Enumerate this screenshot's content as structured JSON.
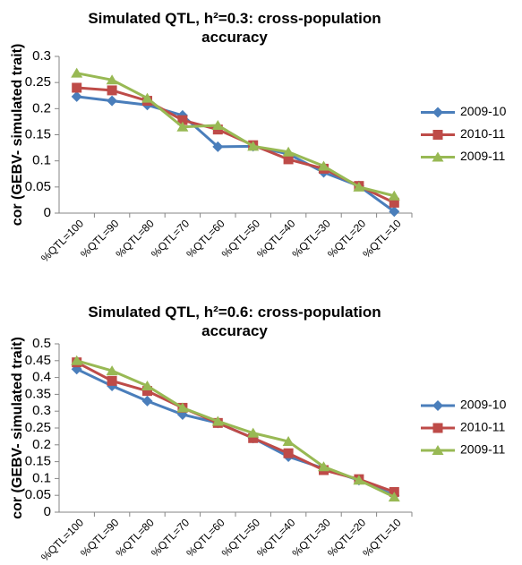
{
  "chart_data": [
    {
      "type": "line",
      "title": "Simulated QTL, h²=0.3: cross-population accuracy",
      "y_label": "cor (GEBV- simulated trait)",
      "categories": [
        "%QTL=100",
        "%QTL=90",
        "%QTL=80",
        "%QTL=70",
        "%QTL=60",
        "%QTL=50",
        "%QTL=40",
        "%QTL=30",
        "%QTL=20",
        "%QTL=10"
      ],
      "series": [
        {
          "name": "2009-10",
          "color": "#4a7ebb",
          "marker": "diamond",
          "values": [
            0.223,
            0.215,
            0.207,
            0.187,
            0.127,
            0.128,
            0.113,
            0.078,
            0.052,
            0.003
          ]
        },
        {
          "name": "2010-11",
          "color": "#be4b48",
          "marker": "square",
          "values": [
            0.24,
            0.235,
            0.215,
            0.178,
            0.16,
            0.13,
            0.103,
            0.085,
            0.052,
            0.02
          ]
        },
        {
          "name": "2009-11",
          "color": "#98b954",
          "marker": "triangle",
          "values": [
            0.268,
            0.255,
            0.22,
            0.165,
            0.168,
            0.128,
            0.117,
            0.09,
            0.05,
            0.033
          ]
        }
      ],
      "ylim": [
        0,
        0.3
      ],
      "yticks": [
        0,
        0.05,
        0.1,
        0.15,
        0.2,
        0.25,
        0.3
      ],
      "grid": false,
      "legend": "right"
    },
    {
      "type": "line",
      "title": "Simulated QTL, h²=0.6: cross-population accuracy",
      "y_label": "cor (GEBV- simulated trait)",
      "categories": [
        "%QTL=100",
        "%QTL=90",
        "%QTL=80",
        "%QTL=70",
        "%QTL=60",
        "%QTL=50",
        "%QTL=40",
        "%QTL=30",
        "%QTL=20",
        "%QTL=10"
      ],
      "series": [
        {
          "name": "2009-10",
          "color": "#4a7ebb",
          "marker": "diamond",
          "values": [
            0.425,
            0.375,
            0.33,
            0.29,
            0.265,
            0.22,
            0.165,
            0.13,
            0.095,
            0.05
          ]
        },
        {
          "name": "2010-11",
          "color": "#be4b48",
          "marker": "square",
          "values": [
            0.445,
            0.39,
            0.36,
            0.31,
            0.265,
            0.22,
            0.175,
            0.125,
            0.098,
            0.06
          ]
        },
        {
          "name": "2009-11",
          "color": "#98b954",
          "marker": "triangle",
          "values": [
            0.45,
            0.42,
            0.375,
            0.31,
            0.27,
            0.235,
            0.21,
            0.135,
            0.095,
            0.045
          ]
        }
      ],
      "ylim": [
        0,
        0.5
      ],
      "yticks": [
        0,
        0.05,
        0.1,
        0.15,
        0.2,
        0.25,
        0.3,
        0.35,
        0.4,
        0.45,
        0.5
      ],
      "grid": false,
      "legend": "right"
    }
  ]
}
